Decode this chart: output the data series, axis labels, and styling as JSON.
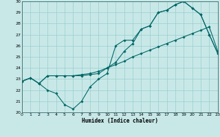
{
  "xlabel": "Humidex (Indice chaleur)",
  "bg_color": "#c8e8e8",
  "grid_color": "#99cccc",
  "line_color": "#006666",
  "x_min": 0,
  "x_max": 23,
  "y_min": 20,
  "y_max": 30,
  "x_ticks": [
    0,
    1,
    2,
    3,
    4,
    5,
    6,
    7,
    8,
    9,
    10,
    11,
    12,
    13,
    14,
    15,
    16,
    17,
    18,
    19,
    20,
    21,
    22,
    23
  ],
  "y_ticks": [
    20,
    21,
    22,
    23,
    24,
    25,
    26,
    27,
    28,
    29,
    30
  ],
  "line1_y": [
    22.8,
    23.1,
    22.6,
    22.0,
    21.7,
    20.7,
    20.3,
    21.0,
    22.3,
    23.0,
    23.5,
    26.0,
    26.5,
    26.5,
    27.5,
    27.8,
    29.0,
    29.2,
    29.7,
    30.0,
    29.4,
    28.8,
    27.0,
    25.3
  ],
  "line2_y": [
    22.8,
    23.1,
    22.6,
    23.3,
    23.3,
    23.3,
    23.3,
    23.3,
    23.4,
    23.5,
    24.0,
    24.5,
    25.5,
    26.2,
    27.5,
    27.8,
    29.0,
    29.2,
    29.7,
    30.0,
    29.4,
    28.8,
    27.0,
    25.3
  ],
  "line3_y": [
    22.8,
    23.1,
    22.6,
    23.3,
    23.3,
    23.3,
    23.3,
    23.4,
    23.5,
    23.7,
    24.0,
    24.3,
    24.6,
    25.0,
    25.3,
    25.6,
    25.9,
    26.2,
    26.5,
    26.8,
    27.1,
    27.4,
    27.7,
    25.5
  ]
}
